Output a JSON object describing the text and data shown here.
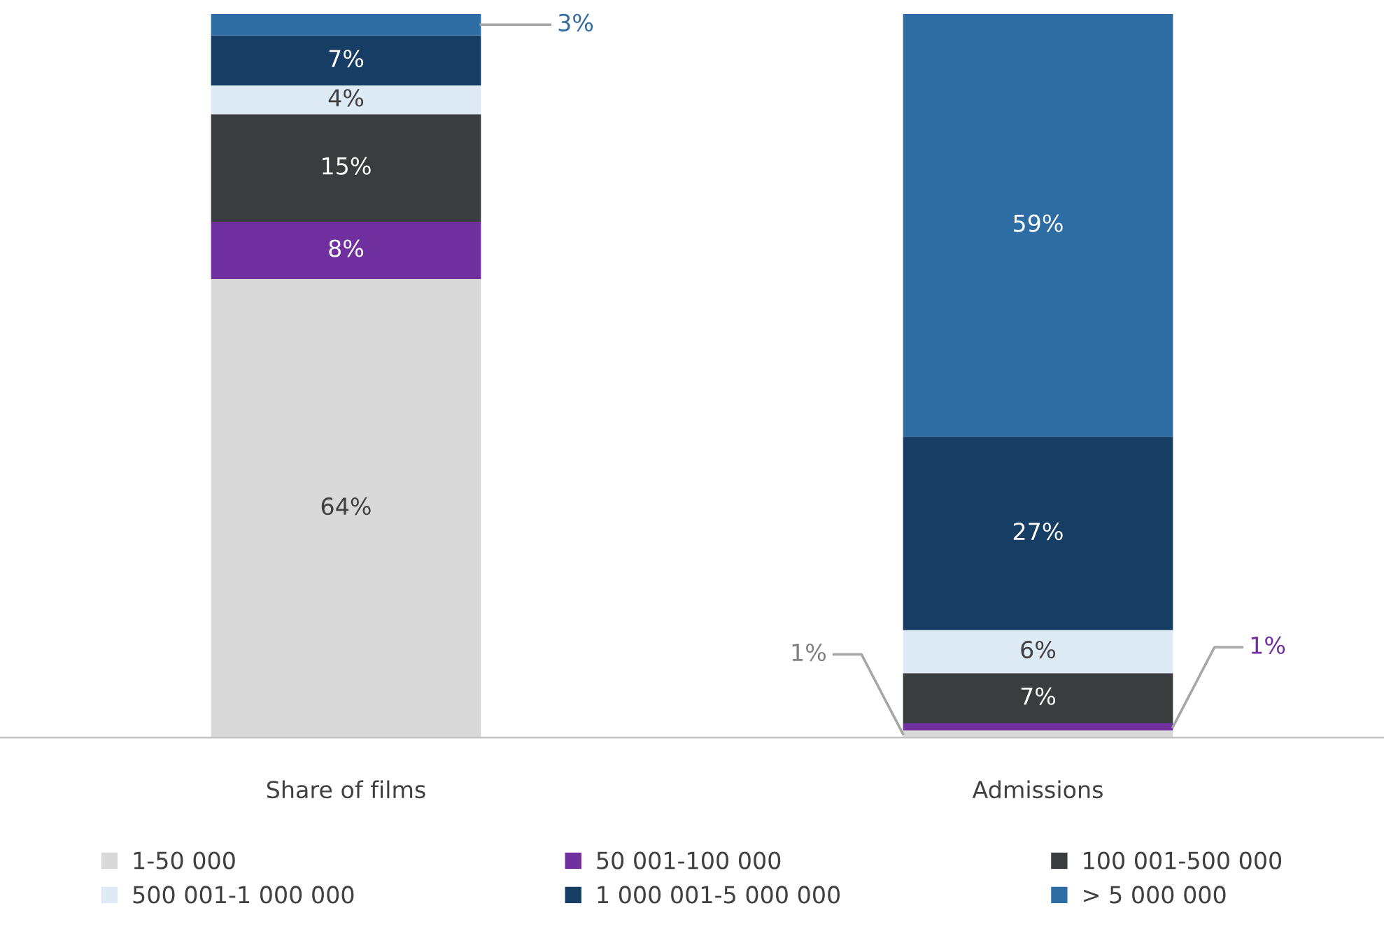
{
  "chart_data": {
    "type": "bar",
    "stacked": true,
    "legend": "bottom",
    "categories": [
      "Share of films",
      "Admissions"
    ],
    "series": [
      {
        "name": "1-50 000",
        "color": "#d9d9d9",
        "values": [
          64,
          1
        ],
        "value_labels": [
          "64%",
          "1%"
        ]
      },
      {
        "name": "50 001-100 000",
        "color": "#7030a0",
        "values": [
          8,
          1
        ],
        "value_labels": [
          "8%",
          "1%"
        ]
      },
      {
        "name": "100 001-500 000",
        "color": "#3a3d40",
        "values": [
          15,
          7
        ],
        "value_labels": [
          "15%",
          "7%"
        ]
      },
      {
        "name": "500 001-1 000 000",
        "color": "#deebf7",
        "values": [
          4,
          6
        ],
        "value_labels": [
          "4%",
          "6%"
        ]
      },
      {
        "name": "1 000 001-5 000 000",
        "color": "#163e64",
        "values": [
          7,
          27
        ],
        "value_labels": [
          "7%",
          "27%"
        ]
      },
      {
        "name": "> 5 000 000",
        "color": "#2e6ca4",
        "values": [
          3,
          59
        ],
        "value_labels": [
          "3%",
          "59%"
        ]
      }
    ]
  }
}
